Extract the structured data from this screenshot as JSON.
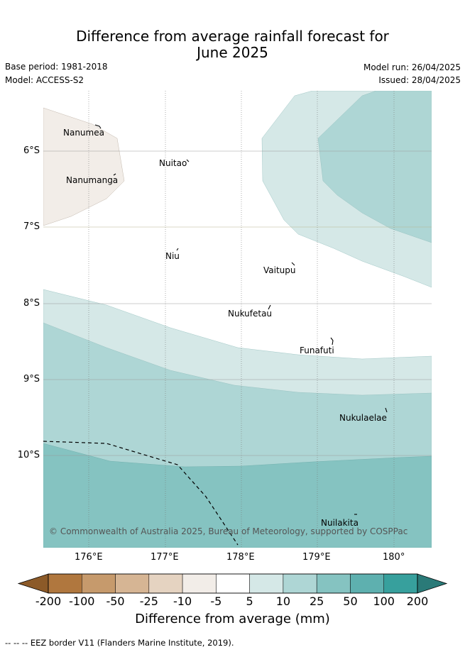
{
  "title": {
    "line1": "Difference from average rainfall forecast for",
    "line2": "June 2025"
  },
  "meta": {
    "base_period": "Base period: 1981-2018",
    "model": "Model: ACCESS-S2",
    "model_run": "Model run: 26/04/2025",
    "issued": "Issued: 28/04/2025"
  },
  "map": {
    "lat_labels": [
      "6°S",
      "7°S",
      "8°S",
      "9°S",
      "10°S"
    ],
    "lon_labels": [
      "176°E",
      "177°E",
      "178°E",
      "179°E",
      "180°"
    ],
    "islands": [
      {
        "name": "Nanumea"
      },
      {
        "name": "Nuitao"
      },
      {
        "name": "Nanumanga"
      },
      {
        "name": "Niu"
      },
      {
        "name": "Vaitupu"
      },
      {
        "name": "Nukufetau"
      },
      {
        "name": "Funafuti"
      },
      {
        "name": "Nukulaelae"
      },
      {
        "name": "Nuilakita"
      }
    ],
    "copyright": "© Commonwealth of Australia 2025, Bureau of Meteorology, supported by COSPPac"
  },
  "colorbar": {
    "title": "Difference from average (mm)",
    "ticks": [
      "-200",
      "-100",
      "-50",
      "-25",
      "-10",
      "-5",
      "5",
      "10",
      "25",
      "50",
      "100",
      "200"
    ],
    "colors": [
      "#8c5a28",
      "#b0773e",
      "#c69a6c",
      "#d6b594",
      "#e5d3c1",
      "#f2ede8",
      "#ffffff",
      "#d5e8e7",
      "#aed6d5",
      "#85c3c1",
      "#5eb0af",
      "#37a09d",
      "#2a7a78"
    ]
  },
  "footnote": "--  --  -- EEZ border V11 (Flanders Marine Institute, 2019)."
}
